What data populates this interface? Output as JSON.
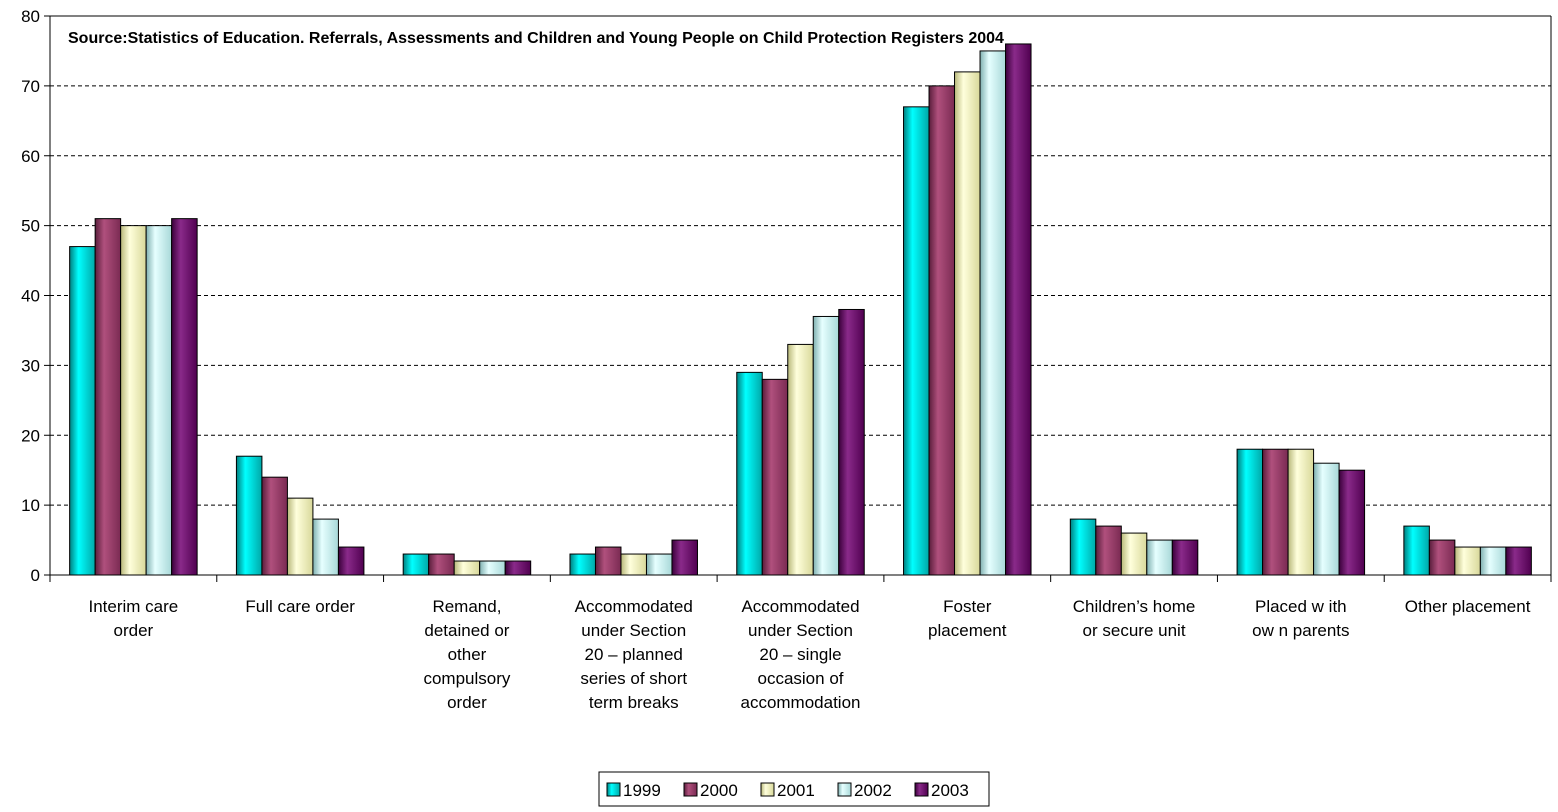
{
  "chart_data": {
    "type": "bar",
    "title": "Source:Statistics of Education. Referrals, Assessments and Children and Young People on Child Protection Registers 2004",
    "xlabel": "",
    "ylabel": "",
    "ylim": [
      0,
      80
    ],
    "yticks": [
      0,
      10,
      20,
      30,
      40,
      50,
      60,
      70,
      80
    ],
    "grid": true,
    "legend_position": "bottom",
    "categories": [
      [
        "Interim care",
        "order"
      ],
      [
        "Full care order"
      ],
      [
        "Remand,",
        "detained or",
        "other",
        "compulsory",
        "order"
      ],
      [
        "Accommodated",
        "under Section",
        "20 – planned",
        "series of short",
        "term breaks"
      ],
      [
        "Accommodated",
        "under Section",
        "20 – single",
        "occasion of",
        "accommodation"
      ],
      [
        "Foster",
        "placement"
      ],
      [
        "Children’s home",
        "or secure unit"
      ],
      [
        "Placed w ith",
        "ow n parents"
      ],
      [
        "Other placement"
      ]
    ],
    "series": [
      {
        "name": "1999",
        "color": "#00CCCC",
        "values": [
          47,
          17,
          3,
          3,
          29,
          67,
          8,
          18,
          7
        ]
      },
      {
        "name": "2000",
        "color": "#993366",
        "values": [
          51,
          14,
          3,
          4,
          28,
          70,
          7,
          18,
          5
        ]
      },
      {
        "name": "2001",
        "color": "#FFFFCC",
        "values": [
          50,
          11,
          2,
          3,
          33,
          72,
          6,
          18,
          4
        ]
      },
      {
        "name": "2002",
        "color": "#CCFFFF",
        "values": [
          50,
          8,
          2,
          3,
          37,
          75,
          5,
          16,
          4
        ]
      },
      {
        "name": "2003",
        "color": "#660066",
        "values": [
          51,
          4,
          2,
          5,
          38,
          76,
          5,
          15,
          4
        ]
      }
    ]
  }
}
